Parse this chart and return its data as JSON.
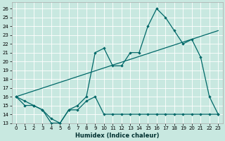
{
  "title": "",
  "xlabel": "Humidex (Indice chaleur)",
  "bg_color": "#c8e8e0",
  "grid_color": "#b0d8d0",
  "line_color": "#006868",
  "xlim": [
    -0.5,
    23.5
  ],
  "ylim": [
    13,
    26.7
  ],
  "yticks": [
    13,
    14,
    15,
    16,
    17,
    18,
    19,
    20,
    21,
    22,
    23,
    24,
    25,
    26
  ],
  "xticks": [
    0,
    1,
    2,
    3,
    4,
    5,
    6,
    7,
    8,
    9,
    10,
    11,
    12,
    13,
    14,
    15,
    16,
    17,
    18,
    19,
    20,
    21,
    22,
    23
  ],
  "line1_x": [
    0,
    1,
    2,
    3,
    4,
    5,
    6,
    7,
    8,
    9,
    10,
    11,
    12,
    13,
    14,
    15,
    16,
    17,
    18,
    19,
    20,
    21,
    22,
    23
  ],
  "line1_y": [
    16,
    15.5,
    15,
    14.5,
    13,
    13,
    14.5,
    15,
    16,
    21,
    21.5,
    19.5,
    19.5,
    21,
    21,
    24,
    26,
    25,
    23.5,
    22,
    22.5,
    20.5,
    16,
    14
  ],
  "line2_x": [
    0,
    1,
    2,
    3,
    4,
    5,
    6,
    7,
    8,
    9,
    10,
    11,
    12,
    13,
    14,
    15,
    16,
    17,
    18,
    19,
    20,
    21,
    22,
    23
  ],
  "line2_y": [
    16,
    15,
    15,
    14.5,
    13.5,
    13,
    14.5,
    14.5,
    15.5,
    16,
    14,
    14,
    14,
    14,
    14,
    14,
    14,
    14,
    14,
    14,
    14,
    14,
    14,
    14
  ],
  "line3_x": [
    0,
    23
  ],
  "line3_y": [
    16,
    23.5
  ]
}
